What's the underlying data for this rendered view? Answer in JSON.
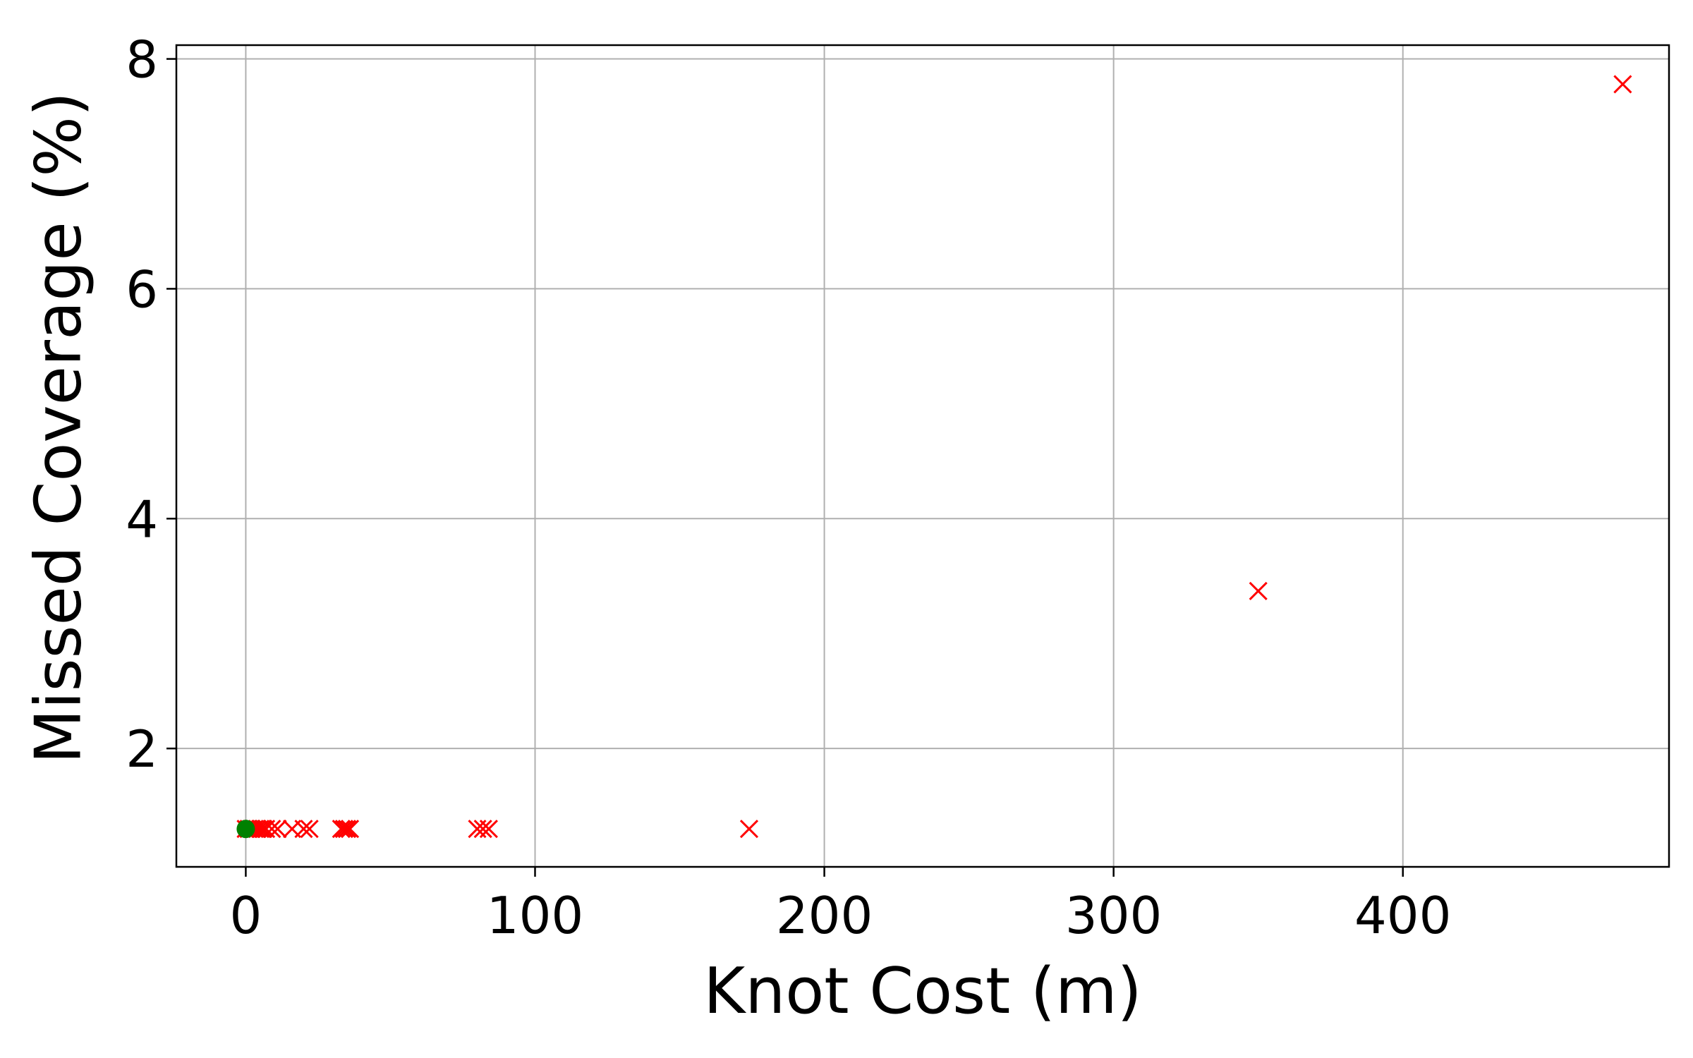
{
  "chart_data": {
    "type": "scatter",
    "title": "",
    "xlabel": "Knot Cost (m)",
    "ylabel": "Missed Coverage (%)",
    "xlim": [
      -24,
      492
    ],
    "ylim": [
      0.97,
      8.12
    ],
    "grid": true,
    "legend": "none",
    "x_ticks": [
      0,
      100,
      200,
      300,
      400
    ],
    "x_tick_labels": [
      "0",
      "100",
      "200",
      "300",
      "400"
    ],
    "y_ticks": [
      2,
      4,
      6,
      8
    ],
    "y_tick_labels": [
      "2",
      "4",
      "6",
      "8"
    ],
    "series": [
      {
        "marker": "x",
        "color": "#ff0000",
        "points": [
          {
            "x": 0,
            "y": 1.3
          },
          {
            "x": 1,
            "y": 1.3
          },
          {
            "x": 2,
            "y": 1.3
          },
          {
            "x": 3,
            "y": 1.3
          },
          {
            "x": 4,
            "y": 1.3
          },
          {
            "x": 5,
            "y": 1.3
          },
          {
            "x": 6,
            "y": 1.3
          },
          {
            "x": 7,
            "y": 1.3
          },
          {
            "x": 9,
            "y": 1.3
          },
          {
            "x": 11,
            "y": 1.3
          },
          {
            "x": 16,
            "y": 1.3
          },
          {
            "x": 20,
            "y": 1.3
          },
          {
            "x": 22,
            "y": 1.3
          },
          {
            "x": 33,
            "y": 1.3
          },
          {
            "x": 34,
            "y": 1.3
          },
          {
            "x": 35,
            "y": 1.3
          },
          {
            "x": 36,
            "y": 1.3
          },
          {
            "x": 80,
            "y": 1.3
          },
          {
            "x": 82,
            "y": 1.3
          },
          {
            "x": 84,
            "y": 1.3
          },
          {
            "x": 174,
            "y": 1.3
          },
          {
            "x": 350,
            "y": 3.37
          },
          {
            "x": 476,
            "y": 7.78
          }
        ]
      },
      {
        "marker": "circle",
        "color": "#008000",
        "points": [
          {
            "x": 0,
            "y": 1.3
          }
        ]
      }
    ]
  },
  "colors": {
    "axis": "#000000",
    "grid": "#b0b0b0"
  }
}
